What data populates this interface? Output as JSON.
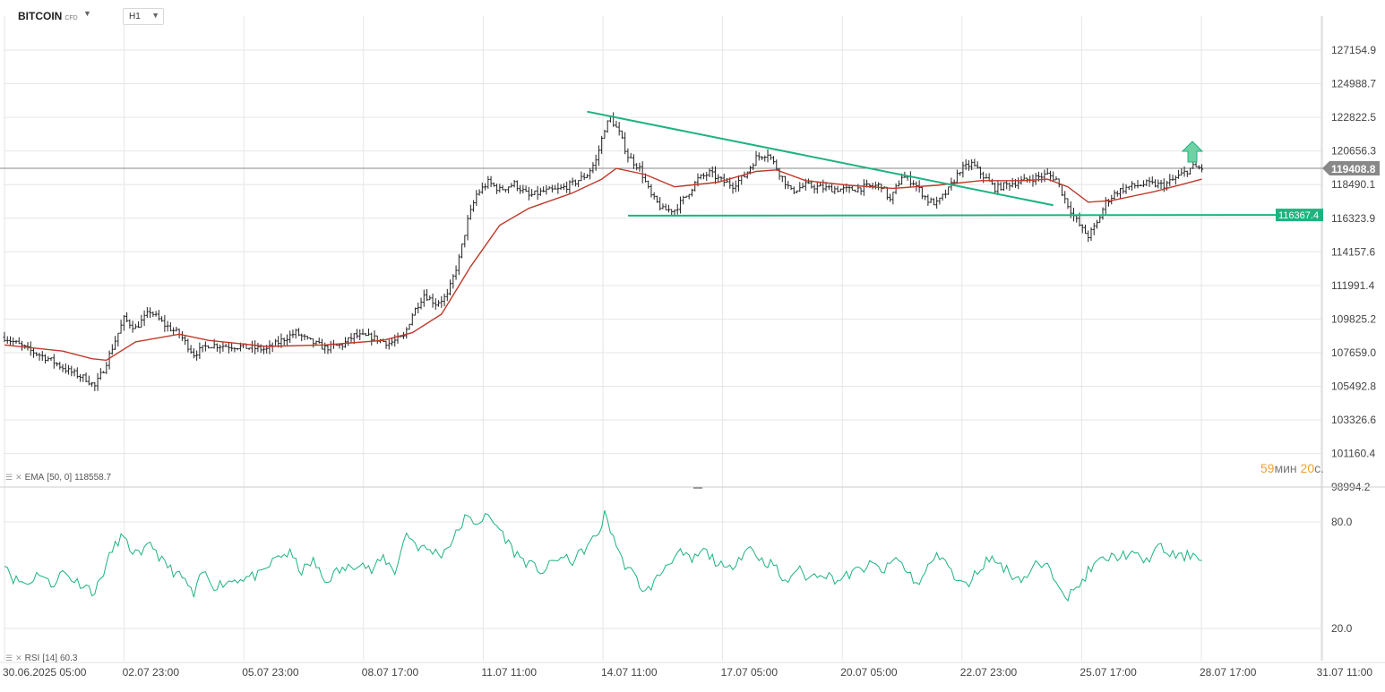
{
  "header": {
    "symbol": "BITCOIN",
    "symbol_sub": "CFD",
    "timeframe": "H1"
  },
  "indicators": {
    "ema_label": "EMA",
    "ema_params": "[50, 0]",
    "ema_value": "118558.7",
    "rsi_label": "RSI",
    "rsi_params": "[14]",
    "rsi_value": "60.3"
  },
  "timer": {
    "minutes": "59",
    "minutes_unit": "мин",
    "seconds": "20",
    "seconds_unit": "с."
  },
  "colors": {
    "bar": "#222222",
    "ema": "#c0392b",
    "rsi": "#1db37f",
    "trendline": "#1db37f",
    "grid": "#e6e6e6",
    "price_badge": "#888888",
    "level_badge": "#1db37f",
    "arrow": "#6fd1a4",
    "timer": "#f0a030"
  },
  "chart_data": [
    {
      "type": "candlestick",
      "title": "BITCOIN CFD H1",
      "x_tick_labels": [
        "30.06.2025  05:00",
        "02.07  23:00",
        "05.07  23:00",
        "08.07  17:00",
        "11.07  11:00",
        "14.07  11:00",
        "17.07  05:00",
        "20.07  05:00",
        "22.07  23:00",
        "25.07  17:00",
        "28.07  17:00",
        "31.07  11:00"
      ],
      "y_tick_labels": [
        "127154.9",
        "124988.7",
        "122822.5",
        "120656.3",
        "118490.1",
        "116323.9",
        "114157.6",
        "111991.4",
        "109825.2",
        "107659.0",
        "105492.8",
        "103326.6",
        "101160.4",
        "98994.2"
      ],
      "ylim": [
        98994.2,
        129321.1
      ],
      "grid": true,
      "current_price": "119408.8",
      "horizontal_level": "116367.4",
      "close_path": [
        [
          0,
          108400
        ],
        [
          8,
          107600
        ],
        [
          15,
          107000
        ],
        [
          22,
          106200
        ],
        [
          28,
          105700
        ],
        [
          31,
          105200
        ],
        [
          34,
          106300
        ],
        [
          38,
          108200
        ],
        [
          41,
          109600
        ],
        [
          45,
          109000
        ],
        [
          50,
          110100
        ],
        [
          55,
          109200
        ],
        [
          60,
          108600
        ],
        [
          65,
          107300
        ],
        [
          70,
          107900
        ],
        [
          80,
          107800
        ],
        [
          90,
          107600
        ],
        [
          96,
          108300
        ],
        [
          100,
          108700
        ],
        [
          104,
          108200
        ],
        [
          110,
          107700
        ],
        [
          116,
          107900
        ],
        [
          120,
          108500
        ],
        [
          126,
          108400
        ],
        [
          132,
          108000
        ],
        [
          137,
          108400
        ],
        [
          140,
          109900
        ],
        [
          144,
          111200
        ],
        [
          148,
          110600
        ],
        [
          152,
          111100
        ],
        [
          156,
          113500
        ],
        [
          159,
          116000
        ],
        [
          162,
          117700
        ],
        [
          166,
          118500
        ],
        [
          170,
          118000
        ],
        [
          175,
          118400
        ],
        [
          180,
          117600
        ],
        [
          185,
          117900
        ],
        [
          190,
          118000
        ],
        [
          195,
          118400
        ],
        [
          200,
          119000
        ],
        [
          203,
          119900
        ],
        [
          206,
          122000
        ],
        [
          208,
          122700
        ],
        [
          211,
          121700
        ],
        [
          214,
          120200
        ],
        [
          218,
          119400
        ],
        [
          222,
          117600
        ],
        [
          226,
          116700
        ],
        [
          230,
          116700
        ],
        [
          234,
          117600
        ],
        [
          238,
          118700
        ],
        [
          242,
          119100
        ],
        [
          246,
          118600
        ],
        [
          250,
          118300
        ],
        [
          254,
          118900
        ],
        [
          258,
          120100
        ],
        [
          262,
          120400
        ],
        [
          266,
          119100
        ],
        [
          270,
          117900
        ],
        [
          275,
          118300
        ],
        [
          282,
          118100
        ],
        [
          290,
          118000
        ],
        [
          296,
          118200
        ],
        [
          301,
          118300
        ],
        [
          304,
          117300
        ],
        [
          308,
          118900
        ],
        [
          312,
          118500
        ],
        [
          317,
          117300
        ],
        [
          320,
          117100
        ],
        [
          324,
          118000
        ],
        [
          328,
          119300
        ],
        [
          332,
          119700
        ],
        [
          336,
          118900
        ],
        [
          340,
          118100
        ],
        [
          345,
          118400
        ],
        [
          350,
          118600
        ],
        [
          354,
          118800
        ],
        [
          358,
          119000
        ],
        [
          361,
          118700
        ],
        [
          364,
          117400
        ],
        [
          367,
          116300
        ],
        [
          370,
          115400
        ],
        [
          372,
          115000
        ],
        [
          375,
          115800
        ],
        [
          378,
          117200
        ],
        [
          382,
          117900
        ],
        [
          386,
          118200
        ],
        [
          392,
          118400
        ],
        [
          398,
          118300
        ],
        [
          404,
          119000
        ],
        [
          408,
          119500
        ],
        [
          411,
          119400
        ]
      ]
    },
    {
      "type": "line",
      "name": "EMA [50, 0]",
      "x_index_range": [
        0,
        411
      ],
      "y": [
        [
          0,
          107900
        ],
        [
          20,
          107500
        ],
        [
          30,
          107000
        ],
        [
          35,
          106900
        ],
        [
          45,
          108100
        ],
        [
          60,
          108600
        ],
        [
          70,
          108200
        ],
        [
          90,
          107800
        ],
        [
          110,
          107900
        ],
        [
          130,
          108200
        ],
        [
          140,
          108700
        ],
        [
          150,
          109900
        ],
        [
          160,
          113000
        ],
        [
          170,
          115700
        ],
        [
          180,
          116800
        ],
        [
          195,
          117800
        ],
        [
          205,
          118700
        ],
        [
          210,
          119400
        ],
        [
          220,
          119000
        ],
        [
          230,
          118200
        ],
        [
          245,
          118500
        ],
        [
          258,
          119200
        ],
        [
          265,
          119300
        ],
        [
          275,
          118600
        ],
        [
          290,
          118300
        ],
        [
          305,
          118100
        ],
        [
          320,
          118300
        ],
        [
          335,
          118600
        ],
        [
          350,
          118600
        ],
        [
          358,
          118700
        ],
        [
          365,
          118200
        ],
        [
          372,
          117200
        ],
        [
          380,
          117300
        ],
        [
          395,
          117900
        ],
        [
          405,
          118400
        ],
        [
          411,
          118700
        ]
      ]
    },
    {
      "type": "line",
      "name": "RSI [14]",
      "y_tick_labels": [
        "80.0",
        "20.0"
      ],
      "ylim": [
        15,
        90
      ],
      "y": [
        [
          0,
          58
        ],
        [
          3,
          48
        ],
        [
          8,
          45
        ],
        [
          12,
          52
        ],
        [
          16,
          44
        ],
        [
          20,
          52
        ],
        [
          24,
          47
        ],
        [
          28,
          44
        ],
        [
          31,
          40
        ],
        [
          34,
          52
        ],
        [
          37,
          64
        ],
        [
          40,
          72
        ],
        [
          43,
          65
        ],
        [
          47,
          60
        ],
        [
          50,
          69
        ],
        [
          54,
          58
        ],
        [
          58,
          52
        ],
        [
          62,
          47
        ],
        [
          65,
          38
        ],
        [
          68,
          52
        ],
        [
          72,
          44
        ],
        [
          80,
          48
        ],
        [
          88,
          50
        ],
        [
          94,
          61
        ],
        [
          98,
          62
        ],
        [
          102,
          52
        ],
        [
          106,
          58
        ],
        [
          110,
          46
        ],
        [
          114,
          52
        ],
        [
          118,
          54
        ],
        [
          122,
          58
        ],
        [
          126,
          52
        ],
        [
          130,
          60
        ],
        [
          134,
          52
        ],
        [
          138,
          74
        ],
        [
          142,
          66
        ],
        [
          146,
          64
        ],
        [
          150,
          62
        ],
        [
          154,
          70
        ],
        [
          158,
          82
        ],
        [
          162,
          80
        ],
        [
          166,
          83
        ],
        [
          170,
          76
        ],
        [
          175,
          63
        ],
        [
          180,
          56
        ],
        [
          185,
          52
        ],
        [
          190,
          60
        ],
        [
          195,
          58
        ],
        [
          200,
          66
        ],
        [
          204,
          74
        ],
        [
          206,
          84
        ],
        [
          209,
          72
        ],
        [
          212,
          58
        ],
        [
          216,
          50
        ],
        [
          220,
          40
        ],
        [
          224,
          48
        ],
        [
          228,
          58
        ],
        [
          232,
          62
        ],
        [
          236,
          58
        ],
        [
          240,
          64
        ],
        [
          244,
          58
        ],
        [
          248,
          52
        ],
        [
          252,
          60
        ],
        [
          256,
          66
        ],
        [
          260,
          58
        ],
        [
          264,
          56
        ],
        [
          268,
          45
        ],
        [
          272,
          54
        ],
        [
          276,
          48
        ],
        [
          280,
          52
        ],
        [
          286,
          47
        ],
        [
          292,
          52
        ],
        [
          298,
          56
        ],
        [
          302,
          52
        ],
        [
          306,
          60
        ],
        [
          310,
          52
        ],
        [
          314,
          44
        ],
        [
          318,
          58
        ],
        [
          322,
          62
        ],
        [
          326,
          48
        ],
        [
          330,
          44
        ],
        [
          334,
          52
        ],
        [
          338,
          60
        ],
        [
          342,
          56
        ],
        [
          346,
          50
        ],
        [
          350,
          48
        ],
        [
          354,
          56
        ],
        [
          358,
          54
        ],
        [
          362,
          46
        ],
        [
          365,
          38
        ],
        [
          368,
          42
        ],
        [
          372,
          52
        ],
        [
          376,
          58
        ],
        [
          380,
          60
        ],
        [
          386,
          62
        ],
        [
          392,
          58
        ],
        [
          396,
          66
        ],
        [
          400,
          62
        ],
        [
          404,
          60
        ],
        [
          408,
          62
        ],
        [
          411,
          60.3
        ]
      ]
    }
  ]
}
